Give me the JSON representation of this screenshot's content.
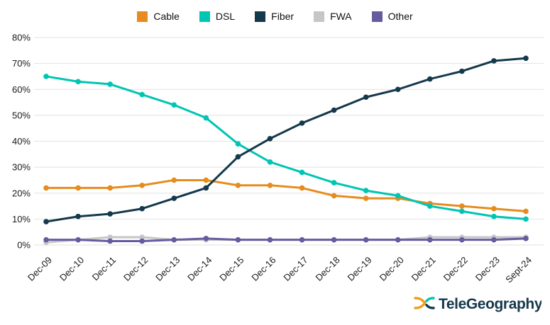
{
  "legend": {
    "items": [
      {
        "label": "Cable",
        "color": "#E68C1E"
      },
      {
        "label": "DSL",
        "color": "#00C5B3"
      },
      {
        "label": "Fiber",
        "color": "#14384C"
      },
      {
        "label": "FWA",
        "color": "#C6C6C6"
      },
      {
        "label": "Other",
        "color": "#675B9F"
      }
    ]
  },
  "chart_data": {
    "type": "line",
    "title": "",
    "xlabel": "",
    "ylabel": "",
    "categories": [
      "Dec-09",
      "Dec-10",
      "Dec-11",
      "Dec-12",
      "Dec-13",
      "Dec-14",
      "Dec-15",
      "Dec-16",
      "Dec-17",
      "Dec-18",
      "Dec-19",
      "Dec-20",
      "Dec-21",
      "Dec-22",
      "Dec-23",
      "Sept-24"
    ],
    "series": [
      {
        "name": "Cable",
        "color": "#E68C1E",
        "values": [
          22,
          22,
          22,
          23,
          25,
          25,
          23,
          23,
          22,
          19,
          18,
          18,
          16,
          15,
          14,
          13
        ]
      },
      {
        "name": "DSL",
        "color": "#00C5B3",
        "values": [
          65,
          63,
          62,
          58,
          54,
          49,
          39,
          32,
          28,
          24,
          21,
          19,
          15,
          13,
          11,
          10
        ]
      },
      {
        "name": "Fiber",
        "color": "#14384C",
        "values": [
          9,
          11,
          12,
          14,
          18,
          22,
          34,
          41,
          47,
          52,
          57,
          60,
          64,
          67,
          71,
          72
        ]
      },
      {
        "name": "FWA",
        "color": "#C6C6C6",
        "values": [
          1,
          2,
          3,
          3,
          2,
          2,
          2,
          2,
          2,
          2,
          2,
          2,
          3,
          3,
          3,
          3
        ]
      },
      {
        "name": "Other",
        "color": "#675B9F",
        "values": [
          2,
          2,
          1.5,
          1.5,
          2,
          2.5,
          2,
          2,
          2,
          2,
          2,
          2,
          2,
          2,
          2,
          2.5
        ]
      }
    ],
    "ylim": [
      0,
      80
    ],
    "ytick_step": 10,
    "ytick_labels": [
      "0%",
      "10%",
      "20%",
      "30%",
      "40%",
      "50%",
      "60%",
      "70%",
      "80%"
    ],
    "grid": true,
    "gridline_color": "#E2E2E2",
    "tick_label_color": "#1a1a1a",
    "legend_position": "top",
    "draw_order": [
      "FWA",
      "Other",
      "Cable",
      "DSL",
      "Fiber"
    ]
  },
  "branding": {
    "logo_text": "TeleGeography",
    "logo_text_color": "#16384C",
    "logo_mark_colors": {
      "left": "#F09C1E",
      "top_right": "#00C5B3",
      "bottom_right": "#14384C"
    }
  }
}
